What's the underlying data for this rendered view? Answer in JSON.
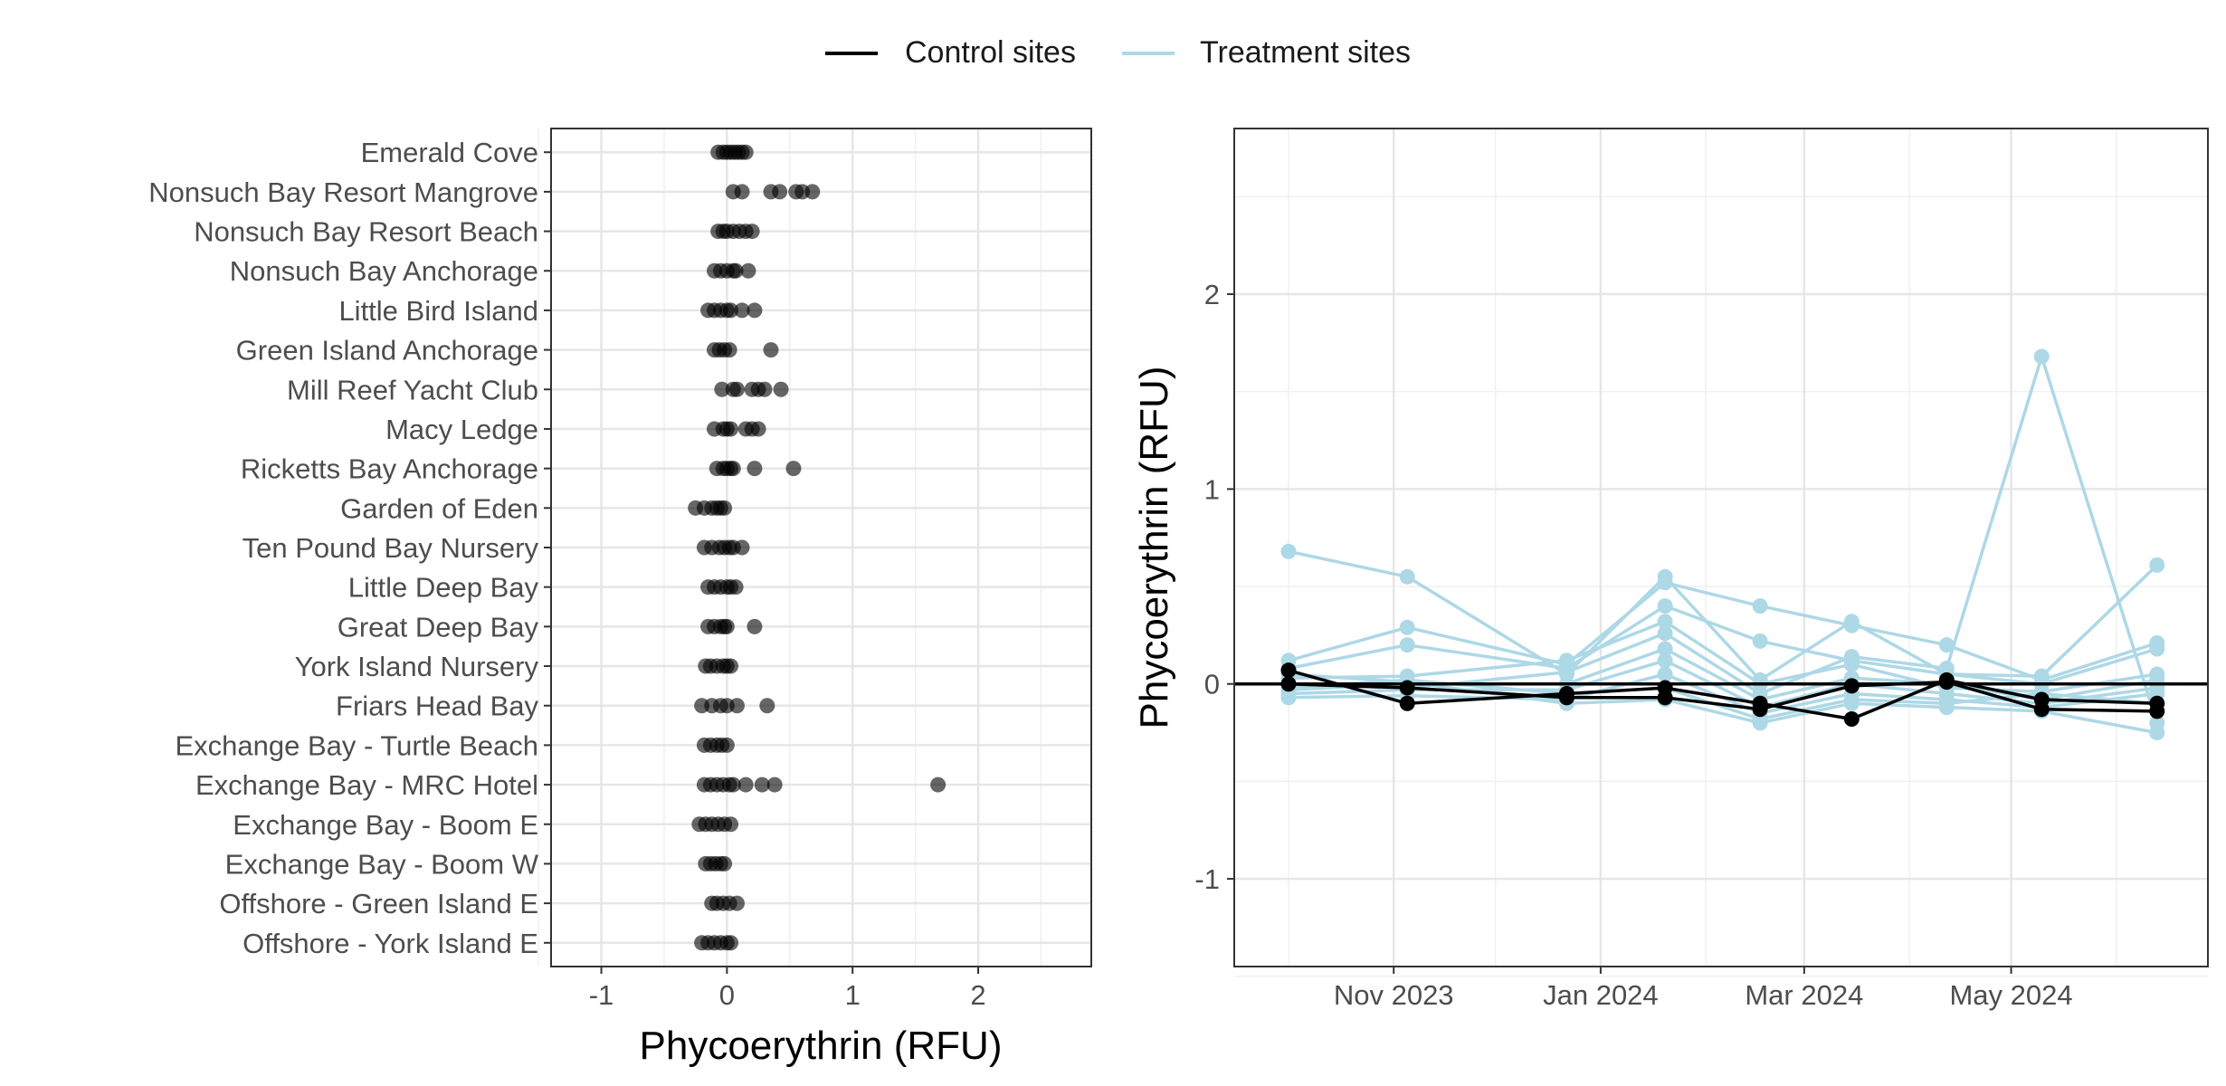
{
  "legend": {
    "items": [
      {
        "label": "Control sites",
        "color": "#000000"
      },
      {
        "label": "Treatment sites",
        "color": "#add8e6"
      }
    ]
  },
  "chart_data": [
    {
      "type": "scatter",
      "xlabel": "Phycoerythrin (RFU)",
      "ylabel": "",
      "xlim": [
        -1.4,
        2.9
      ],
      "xticks": [
        -1,
        0,
        1,
        2
      ],
      "grid": true,
      "point_color": "#000000",
      "point_opacity": 0.6,
      "categories": [
        "Emerald Cove",
        "Nonsuch Bay Resort Mangrove",
        "Nonsuch Bay Resort Beach",
        "Nonsuch Bay Anchorage",
        "Little Bird Island",
        "Green Island Anchorage",
        "Mill Reef Yacht Club",
        "Macy Ledge",
        "Ricketts Bay Anchorage",
        "Garden of Eden",
        "Ten Pound Bay Nursery",
        "Little Deep Bay",
        "Great Deep Bay",
        "York Island Nursery",
        "Friars Head Bay",
        "Exchange Bay - Turtle Beach",
        "Exchange Bay - MRC Hotel",
        "Exchange Bay - Boom E",
        "Exchange Bay - Boom W",
        "Offshore - Green Island E",
        "Offshore - York Island E"
      ],
      "values": [
        [
          -0.07,
          -0.03,
          0.0,
          0.03,
          0.06,
          0.09,
          0.12,
          0.15
        ],
        [
          0.05,
          0.12,
          0.35,
          0.42,
          0.55,
          0.6,
          0.68
        ],
        [
          -0.07,
          -0.03,
          0.0,
          0.05,
          0.1,
          0.15,
          0.2
        ],
        [
          -0.1,
          -0.05,
          0.0,
          0.05,
          0.07,
          0.17
        ],
        [
          -0.15,
          -0.1,
          -0.05,
          0.0,
          0.03,
          0.12,
          0.22
        ],
        [
          -0.1,
          -0.06,
          -0.02,
          0.02,
          0.35
        ],
        [
          -0.04,
          0.05,
          0.08,
          0.2,
          0.25,
          0.3,
          0.43
        ],
        [
          -0.1,
          -0.03,
          0.0,
          0.03,
          0.15,
          0.2,
          0.25
        ],
        [
          -0.08,
          -0.03,
          0.0,
          0.03,
          0.05,
          0.22,
          0.53
        ],
        [
          -0.25,
          -0.18,
          -0.12,
          -0.08,
          -0.05,
          -0.02
        ],
        [
          -0.18,
          -0.12,
          -0.06,
          -0.02,
          0.02,
          0.05,
          0.12
        ],
        [
          -0.15,
          -0.1,
          -0.05,
          0.0,
          0.03,
          0.07
        ],
        [
          -0.15,
          -0.1,
          -0.05,
          -0.02,
          0.0,
          0.22
        ],
        [
          -0.17,
          -0.13,
          -0.08,
          -0.03,
          0.0,
          0.03
        ],
        [
          -0.2,
          -0.12,
          -0.05,
          0.0,
          0.08,
          0.32
        ],
        [
          -0.18,
          -0.13,
          -0.08,
          -0.04,
          0.0
        ],
        [
          -0.18,
          -0.13,
          -0.08,
          -0.03,
          0.02,
          0.05,
          0.15,
          0.28,
          0.38,
          1.68
        ],
        [
          -0.22,
          -0.17,
          -0.12,
          -0.07,
          -0.02,
          0.03
        ],
        [
          -0.17,
          -0.13,
          -0.09,
          -0.05,
          -0.02
        ],
        [
          -0.12,
          -0.08,
          -0.03,
          0.02,
          0.08
        ],
        [
          -0.2,
          -0.15,
          -0.1,
          -0.05,
          0.0,
          0.03
        ]
      ]
    },
    {
      "type": "line",
      "xlabel": "",
      "ylabel": "Phycoerythrin (RFU)",
      "xlim": [
        "2023-09-15",
        "2024-06-28"
      ],
      "ylim": [
        -1.45,
        2.85
      ],
      "yticks": [
        -1,
        0,
        1,
        2
      ],
      "xticks": [
        {
          "date": "2023-11-01",
          "label": "Nov 2023"
        },
        {
          "date": "2024-01-01",
          "label": "Jan 2024"
        },
        {
          "date": "2024-03-01",
          "label": "Mar 2024"
        },
        {
          "date": "2024-05-01",
          "label": "May 2024"
        }
      ],
      "minor_xgrid": [
        "2023-10-01",
        "2023-12-01",
        "2024-02-01",
        "2024-04-01",
        "2024-06-01"
      ],
      "hline": 0,
      "grid": true,
      "dates": [
        "2023-10-01",
        "2023-11-05",
        "2023-12-22",
        "2024-01-20",
        "2024-02-17",
        "2024-03-15",
        "2024-04-12",
        "2024-05-10",
        "2024-06-13"
      ],
      "series": [
        {
          "group": "Treatment sites",
          "color": "#add8e6",
          "values": [
            0.68,
            0.55,
            0.05,
            0.55,
            0.02,
            0.32,
            0.05,
            0.04,
            0.61
          ]
        },
        {
          "group": "Treatment sites",
          "color": "#add8e6",
          "values": [
            0.12,
            0.29,
            0.1,
            0.52,
            0.4,
            0.3,
            0.2,
            0.02,
            0.21
          ]
        },
        {
          "group": "Treatment sites",
          "color": "#add8e6",
          "values": [
            0.08,
            0.2,
            0.08,
            0.4,
            0.22,
            0.12,
            0.05,
            0.0,
            0.18
          ]
        },
        {
          "group": "Treatment sites",
          "color": "#add8e6",
          "values": [
            0.03,
            0.04,
            0.12,
            0.32,
            0.0,
            0.1,
            -0.02,
            -0.04,
            0.05
          ]
        },
        {
          "group": "Treatment sites",
          "color": "#add8e6",
          "values": [
            0.0,
            -0.02,
            0.06,
            0.26,
            -0.05,
            0.14,
            0.08,
            1.68,
            -0.2
          ]
        },
        {
          "group": "Treatment sites",
          "color": "#add8e6",
          "values": [
            -0.03,
            0.0,
            0.0,
            0.18,
            -0.08,
            0.03,
            0.0,
            -0.08,
            0.02
          ]
        },
        {
          "group": "Treatment sites",
          "color": "#add8e6",
          "values": [
            -0.05,
            -0.03,
            -0.03,
            0.12,
            -0.12,
            0.0,
            -0.05,
            -0.1,
            -0.02
          ]
        },
        {
          "group": "Treatment sites",
          "color": "#add8e6",
          "values": [
            -0.07,
            -0.06,
            -0.08,
            0.05,
            -0.15,
            -0.05,
            -0.08,
            -0.12,
            -0.05
          ]
        },
        {
          "group": "Treatment sites",
          "color": "#add8e6",
          "values": [
            -0.02,
            0.02,
            -0.05,
            -0.02,
            -0.18,
            -0.08,
            -0.1,
            -0.05,
            -0.1
          ]
        },
        {
          "group": "Treatment sites",
          "color": "#add8e6",
          "values": [
            0.05,
            0.01,
            -0.1,
            -0.08,
            -0.2,
            -0.1,
            -0.12,
            -0.14,
            -0.25
          ]
        },
        {
          "group": "Control sites",
          "color": "#000000",
          "values": [
            0.07,
            -0.1,
            -0.05,
            -0.02,
            -0.1,
            -0.18,
            0.02,
            -0.08,
            -0.1
          ]
        },
        {
          "group": "Control sites",
          "color": "#000000",
          "values": [
            0.0,
            -0.02,
            -0.07,
            -0.07,
            -0.13,
            -0.01,
            0.01,
            -0.13,
            -0.14
          ]
        }
      ]
    }
  ]
}
